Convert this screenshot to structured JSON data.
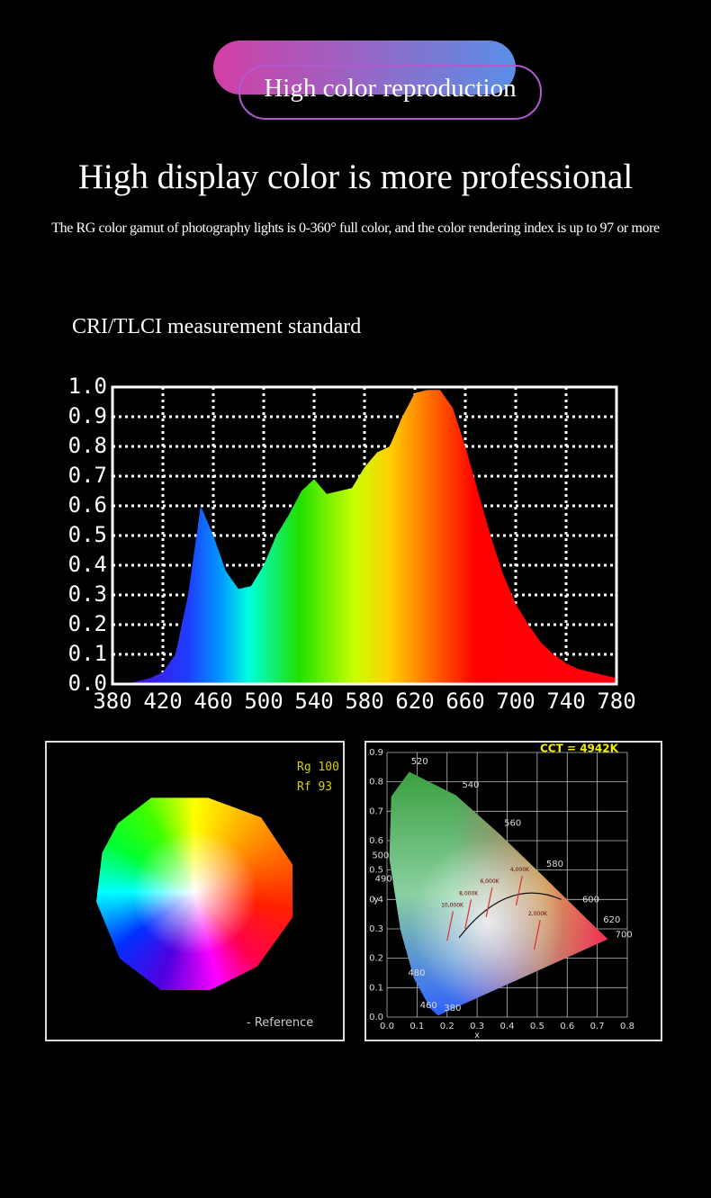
{
  "badge": "High color reproduction",
  "headline": "High display color is more professional",
  "subtitle": "The RG color gamut of photography lights is 0-360° full color, and the color rendering index is up to 97 or more",
  "section_title": "CRI/TLCI measurement standard",
  "chart_data": {
    "type": "area",
    "x": [
      380,
      390,
      400,
      410,
      420,
      430,
      440,
      450,
      460,
      470,
      480,
      490,
      500,
      510,
      520,
      530,
      540,
      550,
      560,
      570,
      580,
      590,
      600,
      610,
      620,
      630,
      640,
      650,
      660,
      670,
      680,
      690,
      700,
      710,
      720,
      730,
      740,
      750,
      760,
      770,
      780
    ],
    "values": [
      0,
      0,
      0.01,
      0.02,
      0.04,
      0.1,
      0.3,
      0.6,
      0.5,
      0.38,
      0.32,
      0.33,
      0.4,
      0.5,
      0.57,
      0.65,
      0.69,
      0.64,
      0.65,
      0.66,
      0.73,
      0.78,
      0.8,
      0.9,
      0.98,
      0.99,
      0.99,
      0.93,
      0.8,
      0.65,
      0.5,
      0.37,
      0.27,
      0.2,
      0.14,
      0.1,
      0.07,
      0.05,
      0.04,
      0.03,
      0.02
    ],
    "xlim": [
      380,
      780
    ],
    "ylim": [
      0,
      1
    ],
    "xticks": [
      380,
      420,
      460,
      500,
      540,
      580,
      620,
      660,
      700,
      740,
      780
    ],
    "yticks": [
      {
        "value": 0,
        "label": "0.0"
      },
      0.1,
      0.2,
      0.3,
      0.4,
      0.5,
      0.6,
      0.7,
      0.8,
      0.9,
      {
        "value": 1,
        "label": "1.0"
      }
    ],
    "grid": true
  },
  "gamut": {
    "labels": [
      "Rg 100",
      "Rf 93"
    ],
    "reference": "- Reference"
  },
  "cie": {
    "cct": "CCT = 4942K",
    "x_label": "x",
    "y_label": "y",
    "xticks": [
      "0.0",
      "0.1",
      "0.2",
      "0.3",
      "0.4",
      "0.5",
      "0.6",
      "0.7",
      "0.8"
    ],
    "yticks": [
      "0.0",
      "0.1",
      "0.2",
      "0.3",
      "0.4",
      "0.5",
      "0.6",
      "0.7",
      "0.8",
      "0.9"
    ],
    "wavelengths": [
      "520",
      "540",
      "560",
      "580",
      "600",
      "620",
      "700",
      "500",
      "490",
      "480",
      "460",
      "380"
    ],
    "temperatures": [
      "10,000K",
      "8,000K",
      "6,000K",
      "4,000K",
      "2,000K"
    ]
  }
}
